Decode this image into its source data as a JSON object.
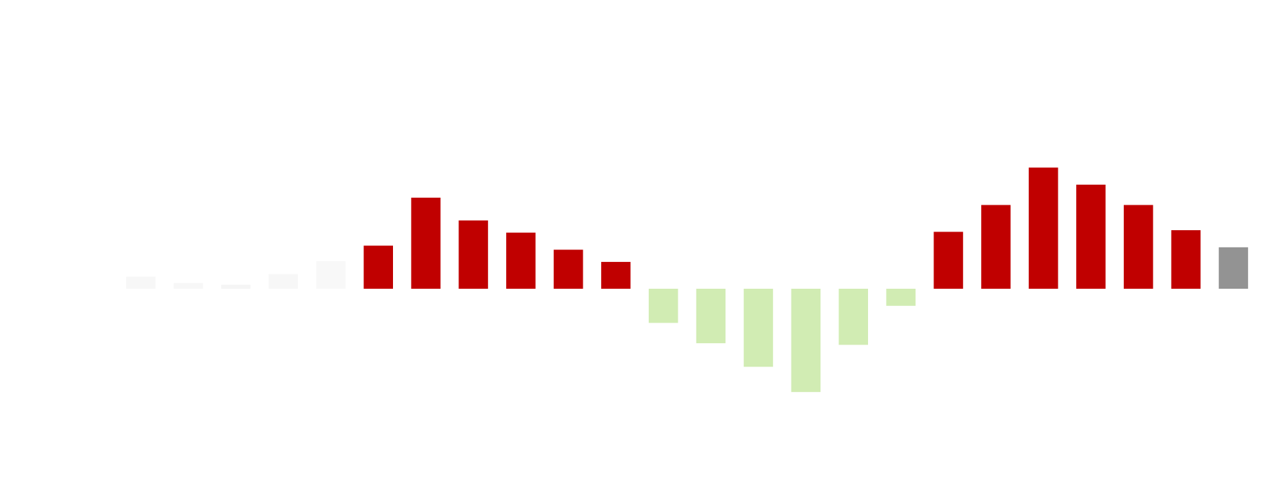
{
  "chart_data": {
    "type": "bar",
    "values": [
      15,
      7,
      5,
      18,
      34,
      53,
      112,
      84,
      69,
      48,
      33,
      -42,
      -67,
      -96,
      -127,
      -69,
      -21,
      70,
      103,
      149,
      128,
      103,
      72,
      51
    ],
    "colors": [
      "#f7f7f7",
      "#f7f7f7",
      "#f5f5f5",
      "#f7f7f7",
      "#f8f8f8",
      "#c00000",
      "#c00000",
      "#c00000",
      "#c00000",
      "#c00000",
      "#c00000",
      "#d1ecb3",
      "#d1ecb3",
      "#d1ecb3",
      "#d1ecb3",
      "#d1ecb3",
      "#d1ecb3",
      "#c00000",
      "#c00000",
      "#c00000",
      "#c00000",
      "#c00000",
      "#c00000",
      "#939393"
    ]
  }
}
